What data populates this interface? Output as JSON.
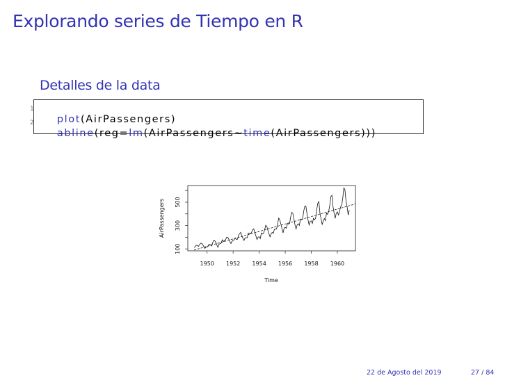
{
  "slide": {
    "title": "Explorando series de Tiempo en R",
    "subtitle": "Detalles de la data",
    "accent_color": "#3333b3"
  },
  "code": {
    "lines": [
      {
        "number": "1",
        "fn": "plot",
        "rest": "(AirPassengers)"
      },
      {
        "number": "2",
        "fn": "abline",
        "rest_a": "(reg=",
        "fn2": "lm",
        "rest_b": "(AirPassengers~",
        "fn3": "time",
        "rest_c": "(AirPassengers)))"
      }
    ]
  },
  "footer": {
    "date": "22 de Agosto del 2019",
    "page": "27 / 84"
  },
  "chart_data": {
    "type": "line",
    "xlabel": "Time",
    "ylabel": "AirPassengers",
    "start": 1949,
    "frequency": 12,
    "xlim": [
      1948.52,
      1961.39
    ],
    "ylim": [
      83.3,
      642.7
    ],
    "xticks": [
      "1950",
      "1952",
      "1954",
      "1956",
      "1958",
      "1960"
    ],
    "yticks": [
      "100",
      "300",
      "500"
    ],
    "grid": false,
    "values": [
      112,
      118,
      132,
      129,
      121,
      135,
      148,
      148,
      136,
      119,
      104,
      118,
      115,
      126,
      141,
      135,
      125,
      149,
      170,
      170,
      158,
      133,
      114,
      140,
      145,
      150,
      178,
      163,
      172,
      178,
      199,
      199,
      184,
      162,
      146,
      166,
      171,
      180,
      193,
      181,
      183,
      218,
      230,
      242,
      209,
      191,
      172,
      194,
      196,
      196,
      236,
      235,
      229,
      243,
      264,
      272,
      237,
      211,
      180,
      201,
      204,
      188,
      235,
      227,
      234,
      264,
      302,
      293,
      259,
      229,
      203,
      229,
      242,
      233,
      267,
      269,
      270,
      315,
      364,
      347,
      312,
      274,
      237,
      278,
      284,
      277,
      317,
      313,
      318,
      374,
      413,
      405,
      355,
      306,
      271,
      306,
      315,
      301,
      356,
      348,
      355,
      422,
      465,
      467,
      404,
      347,
      305,
      336,
      340,
      318,
      362,
      348,
      363,
      435,
      491,
      505,
      404,
      359,
      310,
      337,
      360,
      342,
      406,
      396,
      420,
      472,
      548,
      559,
      463,
      407,
      362,
      405,
      417,
      391,
      419,
      461,
      472,
      535,
      622,
      606,
      508,
      461,
      390,
      432
    ],
    "regression_line": {
      "style": "dashed",
      "intercept": -62055.9,
      "slope": 31.886
    }
  }
}
